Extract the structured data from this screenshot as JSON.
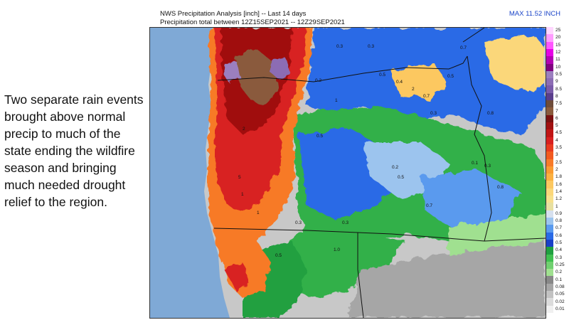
{
  "caption": "Two separate rain events brought above normal precip to much of the state ending the wildfire season and bringing much needed drought relief to the region.",
  "map": {
    "title": "NWS Precipitation Analysis [inch] -- Last 14 days",
    "subtitle": "Precipitation total between 12Z15SEP2021 -- 12Z29SEP2021",
    "max_label": "MAX 11.52 INCH",
    "value_labels": [
      "0.3",
      "0.3",
      "0.2",
      "0.5",
      "0.5",
      "0.7",
      "2",
      "0.4",
      "1",
      "0.7",
      "0.3",
      "0.8",
      "0.5",
      "0.2",
      "0.1",
      "0.3",
      "0.8",
      "0.5",
      "0.3",
      "2",
      "1",
      "1",
      "1.0",
      "0.3",
      "0.5",
      "0.7",
      "5"
    ]
  },
  "legend": {
    "labels": [
      "25",
      "20",
      "15",
      "12",
      "11",
      "10",
      "9.5",
      "9",
      "8.5",
      "8",
      "7.5",
      "7",
      "6",
      "5",
      "4.5",
      "4",
      "3.5",
      "3",
      "2.5",
      "2",
      "1.8",
      "1.6",
      "1.4",
      "1.2",
      "1",
      "0.9",
      "0.8",
      "0.7",
      "0.6",
      "0.5",
      "0.4",
      "0.3",
      "0.25",
      "0.2",
      "0.1",
      "0.08",
      "0.05",
      "0.02",
      "0.01"
    ],
    "colors": [
      "#ffd6ff",
      "#ff9cff",
      "#ff55ff",
      "#e600e6",
      "#b300b3",
      "#800080",
      "#9b7fbf",
      "#8c6cb4",
      "#7a5aa8",
      "#5a3e8c",
      "#6e4c3a",
      "#8a5a3c",
      "#7a1010",
      "#a01010",
      "#c01515",
      "#d82020",
      "#e83a20",
      "#f25a20",
      "#f77a28",
      "#fa9a30",
      "#fbb040",
      "#fcc860",
      "#fbd77a",
      "#f7e08c",
      "#e8e0a0",
      "#d6e0ee",
      "#9cc4ee",
      "#5a9aee",
      "#2a6ae6",
      "#1a40c8",
      "#20a040",
      "#40c050",
      "#70d070",
      "#a0e090",
      "#888888",
      "#a6a6a6",
      "#c2c2c2",
      "#dcdcdc",
      "#f0f0f0"
    ],
    "ocean_color": "#7fa9d6",
    "land_base_color": "#c8c8c8"
  }
}
